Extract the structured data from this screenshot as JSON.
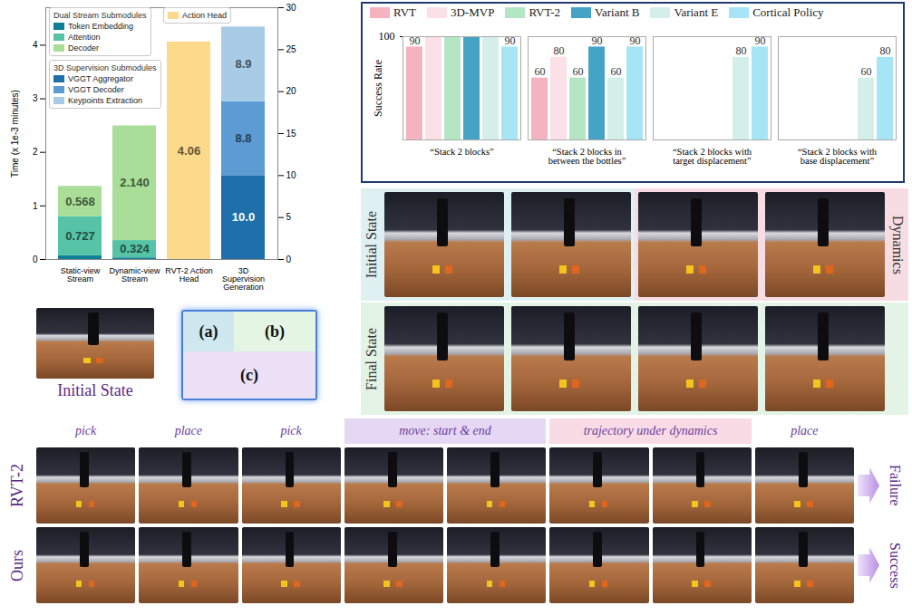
{
  "chart_data": [
    {
      "type": "bar",
      "stacked": true,
      "data_labels": true,
      "legend": "top-left",
      "categories": [
        "Static-view Stream",
        "Dynamic-view Stream",
        "RVT-2 Action Head",
        "3D Supervision Generation"
      ],
      "y_label": "Time (x 1e-3 minutes)",
      "ylim": [
        0,
        4.7
      ],
      "yticks": [
        0,
        1,
        2,
        3,
        4
      ],
      "y2lim": [
        0,
        30
      ],
      "y2ticks": [
        0,
        5,
        10,
        15,
        20,
        25,
        30
      ],
      "legend_groups": [
        {
          "title": "Dual Stream Submodules",
          "series": [
            "Token Embedding",
            "Attention",
            "Decoder"
          ]
        },
        {
          "title": "3D Supervision Submodules",
          "series": [
            "VGGT Aggregator",
            "VGGT Decoder",
            "Keypoints Extraction"
          ]
        },
        {
          "series": [
            "Action Head"
          ]
        }
      ],
      "series": [
        {
          "name": "Token Embedding",
          "color": "#0f7f99",
          "data_labels": false,
          "values": [
            0.07,
            0.03,
            null,
            null
          ]
        },
        {
          "name": "Attention",
          "color": "#56c3a6",
          "values": [
            0.727,
            0.324,
            null,
            null
          ],
          "value_labels": [
            "0.727",
            "0.324",
            null,
            null
          ]
        },
        {
          "name": "Decoder",
          "color": "#a9de98",
          "values": [
            0.568,
            2.14,
            null,
            null
          ],
          "value_labels": [
            "0.568",
            "2.140",
            null,
            null
          ]
        },
        {
          "name": "Action Head",
          "color": "#fdd98c",
          "values": [
            null,
            null,
            4.06,
            null
          ],
          "value_labels": [
            null,
            null,
            "4.06",
            null
          ]
        },
        {
          "name": "VGGT Aggregator",
          "color": "#1f6fab",
          "axis": "y2",
          "values": [
            null,
            null,
            null,
            10.0
          ],
          "value_labels": [
            null,
            null,
            null,
            "10.0"
          ]
        },
        {
          "name": "VGGT Decoder",
          "color": "#5c9bd3",
          "axis": "y2",
          "values": [
            null,
            null,
            null,
            8.8
          ],
          "value_labels": [
            null,
            null,
            null,
            "8.8"
          ]
        },
        {
          "name": "Keypoints Extraction",
          "color": "#a8cbe6",
          "axis": "y2",
          "values": [
            null,
            null,
            null,
            8.9
          ],
          "value_labels": [
            null,
            null,
            null,
            "8.9"
          ]
        }
      ]
    },
    {
      "type": "bar",
      "data_labels": true,
      "legend": "top",
      "grid": true,
      "y_label": "Success Rate",
      "categories": [
        "“Stack 2 blocks”",
        "“Stack 2 blocks in between the bottles”",
        "“Stack 2 blocks with target displacement”",
        "“Stack 2 blocks with base displacement”"
      ],
      "ylim": [
        0,
        100
      ],
      "yticks": [
        100
      ],
      "series": [
        {
          "name": "RVT",
          "color": "#f5b3bf",
          "values": [
            90,
            60,
            null,
            null
          ],
          "value_labels": [
            "90",
            "60",
            null,
            null
          ]
        },
        {
          "name": "3D-MVP",
          "color": "#fbe0e8",
          "values": [
            100,
            80,
            null,
            null
          ],
          "value_labels": [
            null,
            "80",
            null,
            null
          ]
        },
        {
          "name": "RVT-2",
          "color": "#b4e6c4",
          "values": [
            100,
            60,
            null,
            null
          ],
          "value_labels": [
            null,
            "60",
            null,
            null
          ]
        },
        {
          "name": "Variant B",
          "color": "#45a3c6",
          "values": [
            100,
            90,
            null,
            null
          ],
          "value_labels": [
            null,
            "90",
            null,
            null
          ]
        },
        {
          "name": "Variant E",
          "color": "#d4efea",
          "values": [
            100,
            60,
            80,
            60
          ],
          "value_labels": [
            null,
            "60",
            "80",
            "60"
          ]
        },
        {
          "name": "Cortical Policy",
          "color": "#a5e5f5",
          "values": [
            90,
            90,
            90,
            80
          ],
          "value_labels": [
            "90",
            "90",
            "90",
            "80"
          ]
        }
      ]
    }
  ],
  "panel_key": {
    "labels": [
      "(a)",
      "(b)",
      "(c)"
    ]
  },
  "initial_state_photo": {
    "caption": "Initial State"
  },
  "task_photos": {
    "row_labels": [
      "Initial State",
      "Final State"
    ],
    "side_label": "Dynamics"
  },
  "rollout": {
    "steps": [
      "pick",
      "place",
      "pick",
      "move: start & end",
      "trajectory under dynamics",
      "place"
    ],
    "rows": [
      {
        "label": "RVT-2",
        "outcome": "Failure"
      },
      {
        "label": "Ours",
        "outcome": "Success"
      }
    ]
  }
}
